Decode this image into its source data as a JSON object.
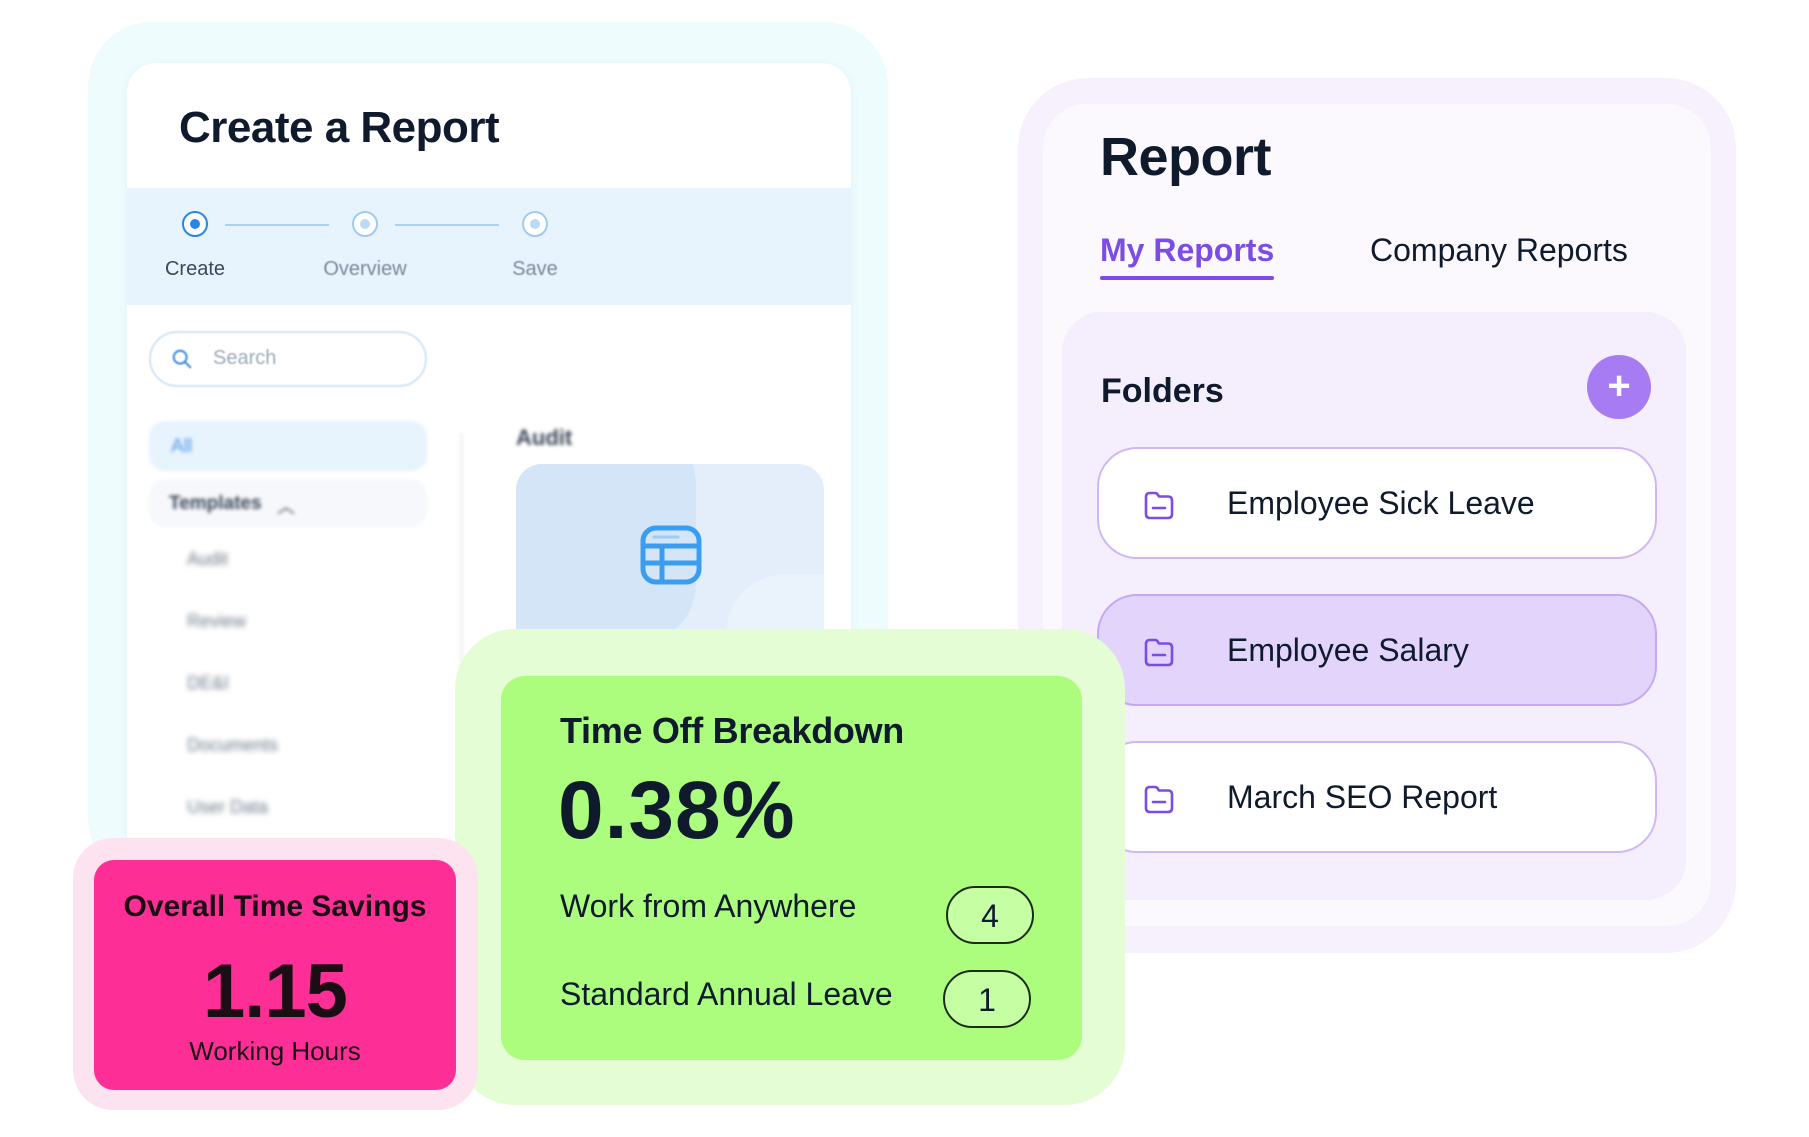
{
  "create_report": {
    "title": "Create a Report",
    "steps": [
      {
        "label": "Create",
        "active": true
      },
      {
        "label": "Overview",
        "active": false
      },
      {
        "label": "Save",
        "active": false
      }
    ],
    "search": {
      "placeholder": "Search"
    },
    "categories": {
      "all": "All",
      "templates": "Templates",
      "template_items": [
        "Audit",
        "Review",
        "DE&I",
        "Documents",
        "User Data"
      ]
    },
    "section_heading": "Audit",
    "icons": {
      "search": "search-icon",
      "table": "table-icon",
      "chevron": "chevron-up-icon"
    },
    "accent_color": "#2a86e6"
  },
  "report": {
    "title": "Report",
    "tabs": [
      {
        "label": "My Reports",
        "active": true
      },
      {
        "label": "Company Reports",
        "active": false
      }
    ],
    "folders_title": "Folders",
    "add_button": "+",
    "folders": [
      {
        "label": "Employee Sick Leave",
        "selected": false
      },
      {
        "label": "Employee Salary",
        "selected": true
      },
      {
        "label": "March SEO Report",
        "selected": false
      }
    ],
    "accent_color": "#7b4ce6"
  },
  "time_off": {
    "title": "Time Off Breakdown",
    "value": "0.38%",
    "rows": [
      {
        "label": "Work from Anywhere",
        "count": "4"
      },
      {
        "label": "Standard Annual Leave",
        "count": "1"
      }
    ],
    "card_color": "#acfd7d"
  },
  "time_savings": {
    "title": "Overall Time Savings",
    "value": "1.15",
    "unit": "Working Hours",
    "card_color": "#fd2f96"
  }
}
